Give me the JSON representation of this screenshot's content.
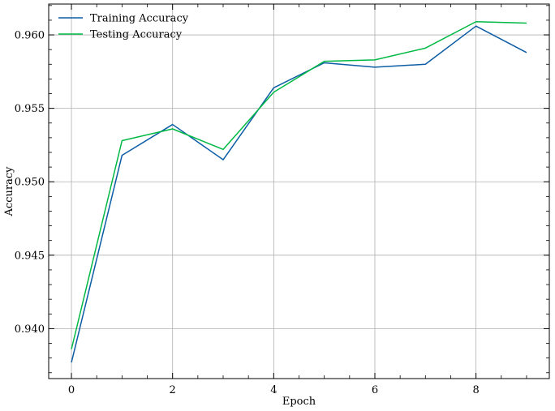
{
  "chart_data": {
    "type": "line",
    "title": "",
    "xlabel": "Epoch",
    "ylabel": "Accuracy",
    "x": [
      0,
      1,
      2,
      3,
      4,
      5,
      6,
      7,
      8,
      9
    ],
    "xlim": [
      -0.45,
      9.45
    ],
    "ylim": [
      0.9366,
      0.9621
    ],
    "xticks": [
      0,
      2,
      4,
      6,
      8
    ],
    "yticks": [
      0.94,
      0.945,
      0.95,
      0.955,
      0.96
    ],
    "xtick_labels": [
      "0",
      "2",
      "4",
      "6",
      "8"
    ],
    "ytick_labels": [
      "0.940",
      "0.945",
      "0.950",
      "0.955",
      "0.960"
    ],
    "grid": true,
    "legend_position": "top-left",
    "series": [
      {
        "name": "Training Accuracy",
        "color": "#0c5da5",
        "values": [
          0.9377,
          0.9518,
          0.9539,
          0.9515,
          0.9564,
          0.9581,
          0.9578,
          0.958,
          0.9606,
          0.9588
        ]
      },
      {
        "name": "Testing Accuracy",
        "color": "#00b945",
        "values": [
          0.9386,
          0.9528,
          0.9536,
          0.9522,
          0.9561,
          0.9582,
          0.9583,
          0.9591,
          0.9609,
          0.9608
        ]
      }
    ]
  }
}
